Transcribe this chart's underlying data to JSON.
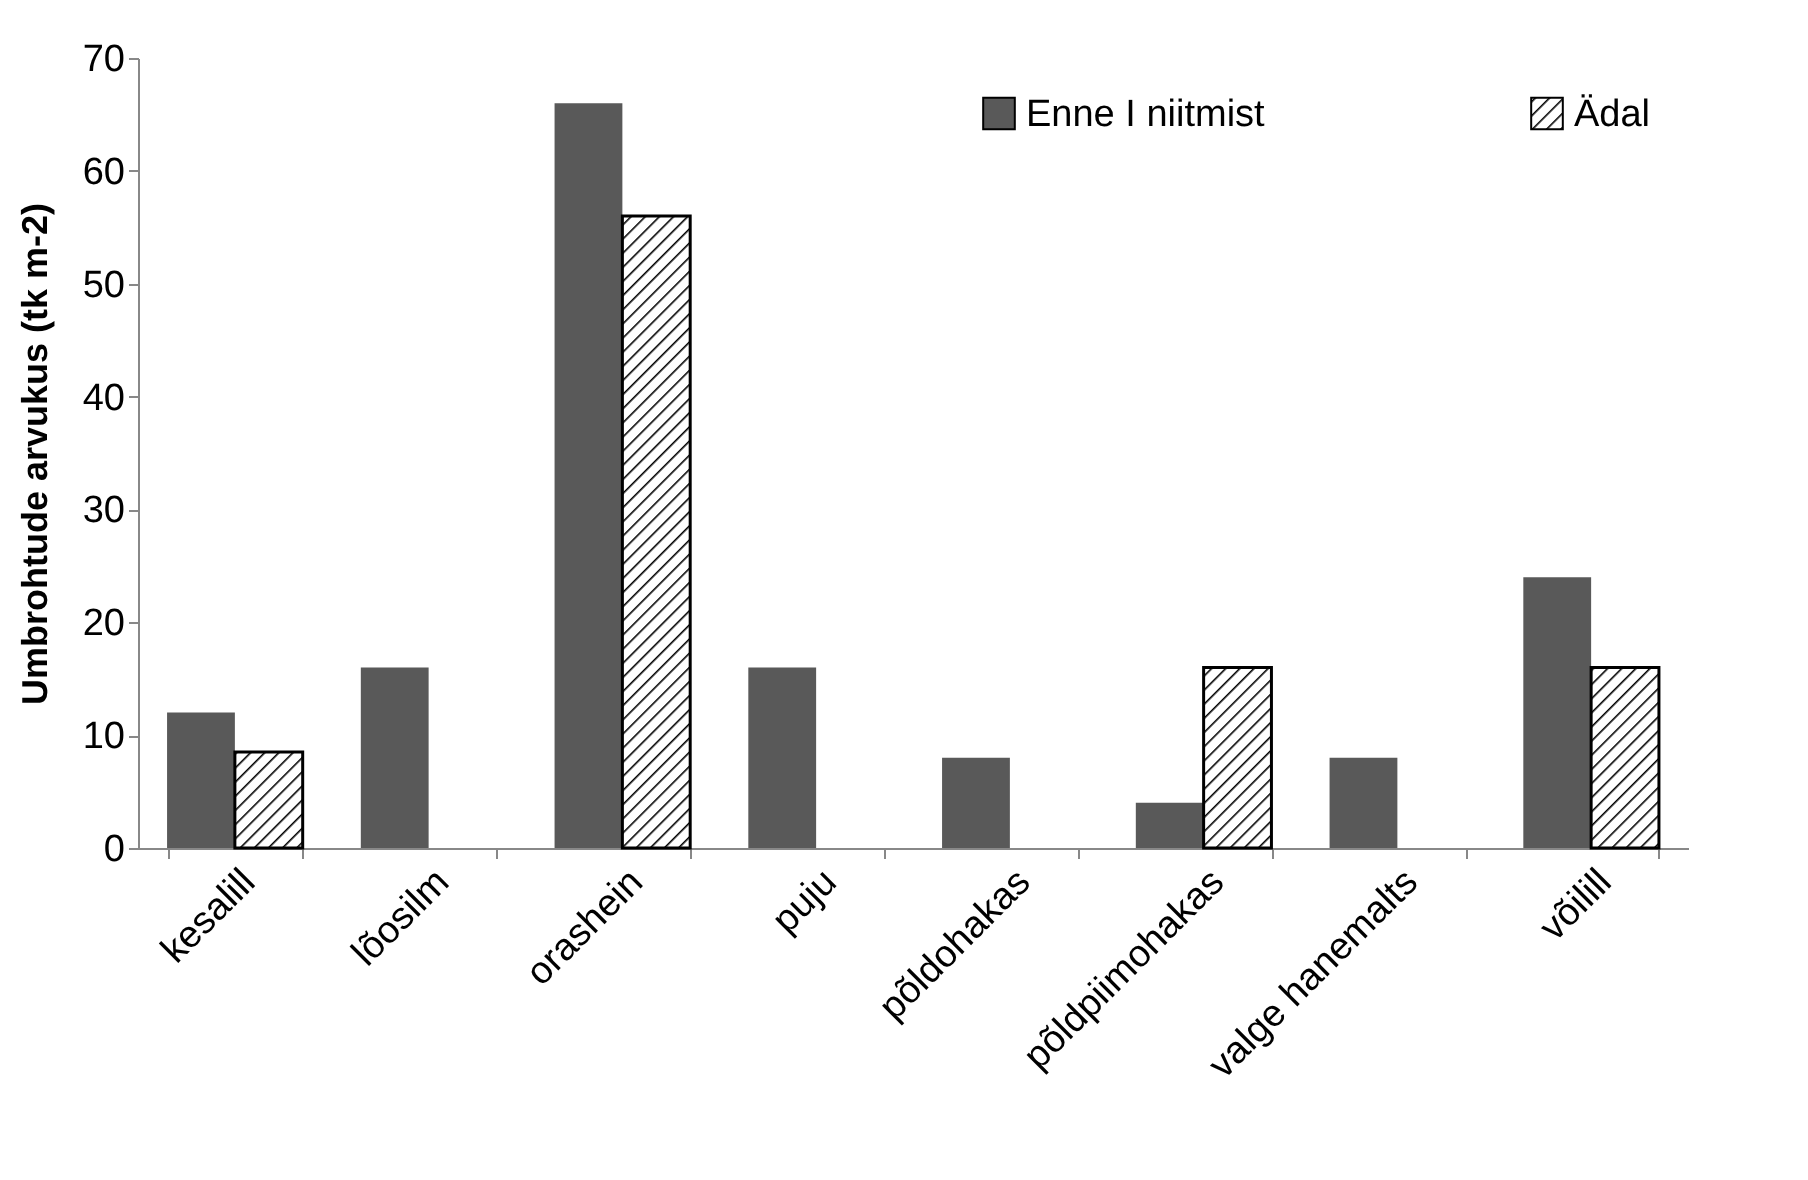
{
  "chart_data": {
    "type": "bar",
    "ylabel": "Umbrohtude arvukus (tk m-2)",
    "categories": [
      "kesalill",
      "lõosilm",
      "orashein",
      "puju",
      "põldohakas",
      "põldpiimohakas",
      "valge hanemalts",
      "võilill"
    ],
    "series": [
      {
        "name": "Enne I niitmist",
        "color": "#595959",
        "values": [
          12,
          16,
          66,
          16,
          8,
          4,
          8,
          24
        ]
      },
      {
        "name": "Ädal",
        "color": "#000000",
        "values": [
          8.5,
          0,
          56,
          0,
          0,
          16,
          0,
          16
        ]
      }
    ],
    "ylim": [
      0,
      70
    ],
    "yticks": [
      0,
      10,
      20,
      30,
      40,
      50,
      60,
      70
    ],
    "grid": false,
    "legend": "top right"
  }
}
